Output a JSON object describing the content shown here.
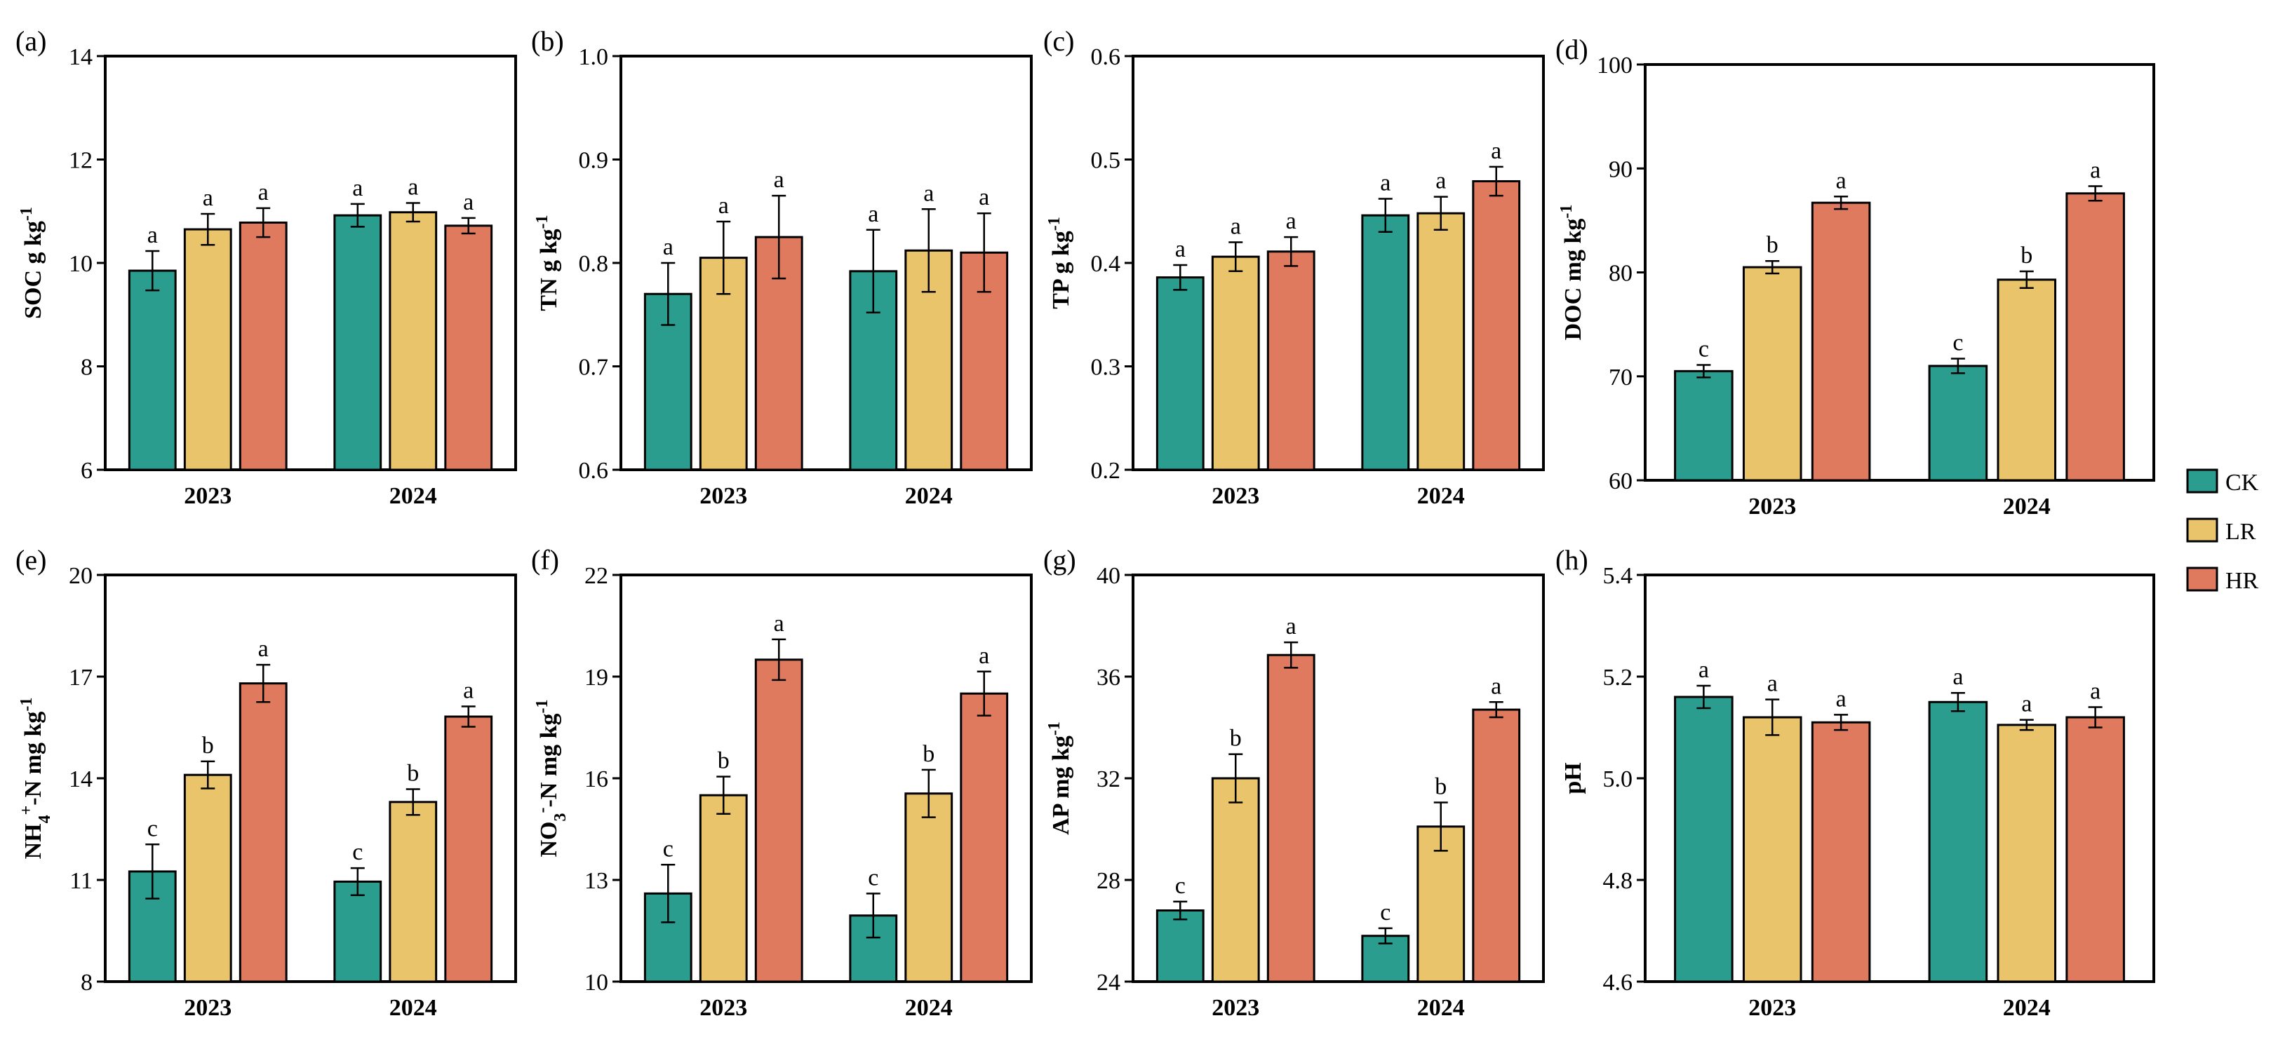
{
  "legend": [
    {
      "key": "CK",
      "label": "CK",
      "color": "#2a9d8f"
    },
    {
      "key": "LR",
      "label": "LR",
      "color": "#e9c46a"
    },
    {
      "key": "HR",
      "label": "HR",
      "color": "#e07a5f"
    }
  ],
  "chart_data": [
    {
      "type": "bar",
      "panel": "(a)",
      "ylabel": {
        "main": "SOC  g kg",
        "sup": "-1"
      },
      "ylim": [
        6,
        14
      ],
      "yticks": [
        6,
        8,
        10,
        12,
        14
      ],
      "ytick_labels": [
        "6",
        "8",
        "10",
        "12",
        "14"
      ],
      "categories": [
        "2023",
        "2024"
      ],
      "series": [
        {
          "name": "CK",
          "values": [
            9.85,
            10.92
          ],
          "errors": [
            0.38,
            0.22
          ],
          "letters": [
            "a",
            "a"
          ]
        },
        {
          "name": "LR",
          "values": [
            10.65,
            10.98
          ],
          "errors": [
            0.3,
            0.18
          ],
          "letters": [
            "a",
            "a"
          ]
        },
        {
          "name": "HR",
          "values": [
            10.78,
            10.72
          ],
          "errors": [
            0.28,
            0.15
          ],
          "letters": [
            "a",
            "a"
          ]
        }
      ]
    },
    {
      "type": "bar",
      "panel": "(b)",
      "ylabel": {
        "main": "TN  g kg",
        "sup": "-1"
      },
      "ylim": [
        0.6,
        1.0
      ],
      "yticks": [
        0.6,
        0.7,
        0.8,
        0.9,
        1.0
      ],
      "ytick_labels": [
        "0.6",
        "0.7",
        "0.8",
        "0.9",
        "1.0"
      ],
      "categories": [
        "2023",
        "2024"
      ],
      "series": [
        {
          "name": "CK",
          "values": [
            0.77,
            0.792
          ],
          "errors": [
            0.03,
            0.04
          ],
          "letters": [
            "a",
            "a"
          ]
        },
        {
          "name": "LR",
          "values": [
            0.805,
            0.812
          ],
          "errors": [
            0.035,
            0.04
          ],
          "letters": [
            "a",
            "a"
          ]
        },
        {
          "name": "HR",
          "values": [
            0.825,
            0.81
          ],
          "errors": [
            0.04,
            0.038
          ],
          "letters": [
            "a",
            "a"
          ]
        }
      ]
    },
    {
      "type": "bar",
      "panel": "(c)",
      "ylabel": {
        "main": "TP  g kg",
        "sup": "-1"
      },
      "ylim": [
        0.2,
        0.6
      ],
      "yticks": [
        0.2,
        0.3,
        0.4,
        0.5,
        0.6
      ],
      "ytick_labels": [
        "0.2",
        "0.3",
        "0.4",
        "0.5",
        "0.6"
      ],
      "categories": [
        "2023",
        "2024"
      ],
      "series": [
        {
          "name": "CK",
          "values": [
            0.386,
            0.446
          ],
          "errors": [
            0.012,
            0.016
          ],
          "letters": [
            "a",
            "a"
          ]
        },
        {
          "name": "LR",
          "values": [
            0.406,
            0.448
          ],
          "errors": [
            0.014,
            0.016
          ],
          "letters": [
            "a",
            "a"
          ]
        },
        {
          "name": "HR",
          "values": [
            0.411,
            0.479
          ],
          "errors": [
            0.014,
            0.014
          ],
          "letters": [
            "a",
            "a"
          ]
        }
      ]
    },
    {
      "type": "bar",
      "panel": "(d)",
      "ylabel": {
        "main": "DOC  mg kg",
        "sup": "-1"
      },
      "ylim": [
        60,
        100
      ],
      "yticks": [
        60,
        70,
        80,
        90,
        100
      ],
      "ytick_labels": [
        "60",
        "70",
        "80",
        "90",
        "100"
      ],
      "categories": [
        "2023",
        "2024"
      ],
      "series": [
        {
          "name": "CK",
          "values": [
            70.5,
            71.0
          ],
          "errors": [
            0.6,
            0.7
          ],
          "letters": [
            "c",
            "c"
          ]
        },
        {
          "name": "LR",
          "values": [
            80.5,
            79.3
          ],
          "errors": [
            0.6,
            0.8
          ],
          "letters": [
            "b",
            "b"
          ]
        },
        {
          "name": "HR",
          "values": [
            86.7,
            87.6
          ],
          "errors": [
            0.6,
            0.7
          ],
          "letters": [
            "a",
            "a"
          ]
        }
      ]
    },
    {
      "type": "bar",
      "panel": "(e)",
      "ylabel": {
        "main": "NH",
        "sub": "4",
        "sup": "+",
        "rest": "-N  mg kg",
        "sup2": "-1"
      },
      "ylim": [
        8,
        20
      ],
      "yticks": [
        8,
        11,
        14,
        17,
        20
      ],
      "ytick_labels": [
        "8",
        "11",
        "14",
        "17",
        "20"
      ],
      "categories": [
        "2023",
        "2024"
      ],
      "series": [
        {
          "name": "CK",
          "values": [
            11.25,
            10.95
          ],
          "errors": [
            0.8,
            0.4
          ],
          "letters": [
            "c",
            "c"
          ]
        },
        {
          "name": "LR",
          "values": [
            14.1,
            13.3
          ],
          "errors": [
            0.4,
            0.38
          ],
          "letters": [
            "b",
            "b"
          ]
        },
        {
          "name": "HR",
          "values": [
            16.8,
            15.82
          ],
          "errors": [
            0.55,
            0.3
          ],
          "letters": [
            "a",
            "a"
          ]
        }
      ]
    },
    {
      "type": "bar",
      "panel": "(f)",
      "ylabel": {
        "main": "NO",
        "sub": "3",
        "sup": "-",
        "rest": "-N  mg kg",
        "sup2": "-1"
      },
      "ylim": [
        10,
        22
      ],
      "yticks": [
        10,
        13,
        16,
        19,
        22
      ],
      "ytick_labels": [
        "10",
        "13",
        "16",
        "19",
        "22"
      ],
      "categories": [
        "2023",
        "2024"
      ],
      "series": [
        {
          "name": "CK",
          "values": [
            12.6,
            11.95
          ],
          "errors": [
            0.85,
            0.65
          ],
          "letters": [
            "c",
            "c"
          ]
        },
        {
          "name": "LR",
          "values": [
            15.5,
            15.55
          ],
          "errors": [
            0.55,
            0.7
          ],
          "letters": [
            "b",
            "b"
          ]
        },
        {
          "name": "HR",
          "values": [
            19.5,
            18.5
          ],
          "errors": [
            0.6,
            0.65
          ],
          "letters": [
            "a",
            "a"
          ]
        }
      ]
    },
    {
      "type": "bar",
      "panel": "(g)",
      "ylabel": {
        "main": "AP  mg kg",
        "sup": "-1"
      },
      "ylim": [
        24,
        40
      ],
      "yticks": [
        24,
        28,
        32,
        36,
        40
      ],
      "ytick_labels": [
        "24",
        "28",
        "32",
        "36",
        "40"
      ],
      "categories": [
        "2023",
        "2024"
      ],
      "series": [
        {
          "name": "CK",
          "values": [
            26.8,
            25.8
          ],
          "errors": [
            0.35,
            0.3
          ],
          "letters": [
            "c",
            "c"
          ]
        },
        {
          "name": "LR",
          "values": [
            32.0,
            30.1
          ],
          "errors": [
            0.95,
            0.95
          ],
          "letters": [
            "b",
            "b"
          ]
        },
        {
          "name": "HR",
          "values": [
            36.85,
            34.7
          ],
          "errors": [
            0.5,
            0.3
          ],
          "letters": [
            "a",
            "a"
          ]
        }
      ]
    },
    {
      "type": "bar",
      "panel": "(h)",
      "ylabel": {
        "main": "pH"
      },
      "ylim": [
        4.6,
        5.4
      ],
      "yticks": [
        4.6,
        4.8,
        5.0,
        5.2,
        5.4
      ],
      "ytick_labels": [
        "4.6",
        "4.8",
        "5.0",
        "5.2",
        "5.4"
      ],
      "categories": [
        "2023",
        "2024"
      ],
      "series": [
        {
          "name": "CK",
          "values": [
            5.16,
            5.15
          ],
          "errors": [
            0.022,
            0.018
          ],
          "letters": [
            "a",
            "a"
          ]
        },
        {
          "name": "LR",
          "values": [
            5.12,
            5.105
          ],
          "errors": [
            0.035,
            0.01
          ],
          "letters": [
            "a",
            "a"
          ]
        },
        {
          "name": "HR",
          "values": [
            5.11,
            5.12
          ],
          "errors": [
            0.015,
            0.02
          ],
          "letters": [
            "a",
            "a"
          ]
        }
      ]
    }
  ]
}
